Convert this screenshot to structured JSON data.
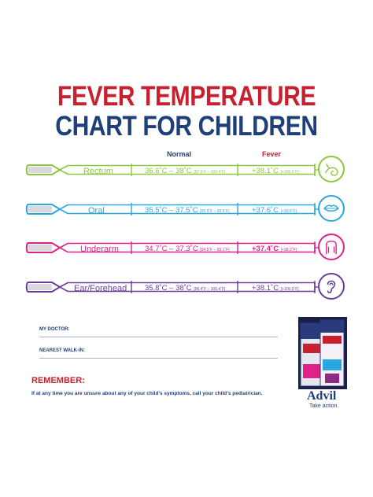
{
  "title": {
    "line1": "FEVER TEMPERATURE",
    "line2": "CHART FOR CHILDREN"
  },
  "headers": {
    "normal": "Normal",
    "fever": "Fever"
  },
  "colors": {
    "title_red": "#c8202f",
    "title_blue": "#1f3f7a",
    "rectum": "#8cc63f",
    "oral": "#29a8df",
    "underarm": "#e0218a",
    "ear": "#6a3d9a"
  },
  "rows": [
    {
      "site": "Rectum",
      "normal": "36.6˚C – 38˚C",
      "normal_f": "[97.9˚F – 100.4˚F]",
      "fever": "+38.1˚C",
      "fever_f": "[+100.5˚F]",
      "icon": "rectum-icon",
      "color": "#8cc63f"
    },
    {
      "site": "Oral",
      "normal": "35.5˚C – 37.5˚C",
      "normal_f": "[95.9˚F – 99.5˚F]",
      "fever": "+37.6˚C",
      "fever_f": "[+99.6˚F]",
      "icon": "lips-icon",
      "color": "#29a8df"
    },
    {
      "site": "Underarm",
      "normal": "34.7˚C – 37.3˚C",
      "normal_f": "[94.5˚F – 99.1˚F]",
      "fever": "+37.4˚C",
      "fever_f": "[+99.2˚F]",
      "icon": "torso-icon",
      "color": "#e0218a"
    },
    {
      "site": "Ear/Forehead",
      "normal": "35.8˚C – 38˚C",
      "normal_f": "[96.4˚F – 100.4˚F]",
      "fever": "+38.1˚C",
      "fever_f": "[+100.5˚F]",
      "icon": "ear-icon",
      "color": "#6a3d9a"
    }
  ],
  "form": {
    "doctor_label": "MY DOCTOR:",
    "walkin_label": "NEAREST WALK-IN:"
  },
  "remember": {
    "heading": "REMEMBER:",
    "text": "If at any time you are unsure about any of your child’s symptoms, call your child’s pediatrician."
  },
  "brand": {
    "name": "Advil",
    "tagline": "Take action."
  }
}
